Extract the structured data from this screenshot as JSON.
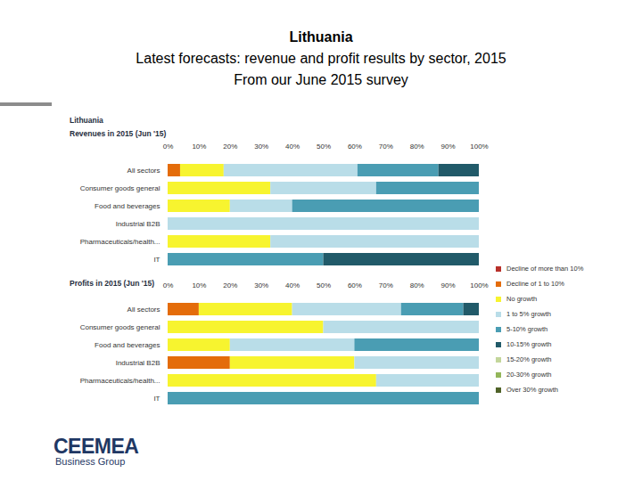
{
  "header": {
    "title": "Lithuania",
    "subtitle": "Latest forecasts: revenue and profit results by sector, 2015",
    "caption": "From our June 2015 survey"
  },
  "panel": {
    "title": "Lithuania"
  },
  "logo": {
    "name": "CEEMEA",
    "tagline": "Business Group"
  },
  "chart_data": [
    {
      "type": "bar",
      "title": "Revenues in 2015 (Jun '15)",
      "orientation": "horizontal",
      "stacked": true,
      "grid": false,
      "legend": "right",
      "data_labels": false,
      "categories": [
        "All sectors",
        "Consumer goods general",
        "Food and beverages",
        "Industrial B2B",
        "Pharmaceuticals/health...",
        "IT"
      ],
      "xlim": [
        0,
        100
      ],
      "xticks": [
        {
          "value": 0,
          "label": "0%"
        },
        {
          "value": 10,
          "label": "10%"
        },
        {
          "value": 20,
          "label": "20%"
        },
        {
          "value": 30,
          "label": "30%"
        },
        {
          "value": 40,
          "label": "40%"
        },
        {
          "value": 50,
          "label": "50%"
        },
        {
          "value": 60,
          "label": "60%"
        },
        {
          "value": 70,
          "label": "70%"
        },
        {
          "value": 80,
          "label": "80%"
        },
        {
          "value": 90,
          "label": "90%"
        },
        {
          "value": 100,
          "label": "100%"
        }
      ],
      "series": [
        {
          "name": "Decline of more than 10%",
          "color": "#b8302a",
          "values": [
            0,
            0,
            0,
            0,
            0,
            0
          ]
        },
        {
          "name": "Decline of 1 to 10%",
          "color": "#e46c0a",
          "values": [
            4,
            0,
            0,
            0,
            0,
            0
          ]
        },
        {
          "name": "No growth",
          "color": "#f7f42f",
          "values": [
            14,
            33,
            20,
            0,
            33,
            0
          ]
        },
        {
          "name": "1 to 5% growth",
          "color": "#b9dde8",
          "values": [
            43,
            34,
            20,
            100,
            67,
            0
          ]
        },
        {
          "name": "5-10% growth",
          "color": "#4a9db3",
          "values": [
            26,
            33,
            60,
            0,
            0,
            50
          ]
        },
        {
          "name": "10-15% growth",
          "color": "#215a69",
          "values": [
            13,
            0,
            0,
            0,
            0,
            50
          ]
        },
        {
          "name": "15-20% growth",
          "color": "#c3d69b",
          "values": [
            0,
            0,
            0,
            0,
            0,
            0
          ]
        },
        {
          "name": "20-30% growth",
          "color": "#93b65a",
          "values": [
            0,
            0,
            0,
            0,
            0,
            0
          ]
        },
        {
          "name": "Over 30% growth",
          "color": "#4f6228",
          "values": [
            0,
            0,
            0,
            0,
            0,
            0
          ]
        }
      ]
    },
    {
      "type": "bar",
      "title": "Profits in 2015 (Jun '15)",
      "orientation": "horizontal",
      "stacked": true,
      "grid": false,
      "legend": "right",
      "data_labels": false,
      "categories": [
        "All sectors",
        "Consumer goods general",
        "Food and beverages",
        "Industrial B2B",
        "Pharmaceuticals/health...",
        "IT"
      ],
      "xlim": [
        0,
        100
      ],
      "xticks": [
        {
          "value": 0,
          "label": "0%"
        },
        {
          "value": 10,
          "label": "10%"
        },
        {
          "value": 20,
          "label": "20%"
        },
        {
          "value": 30,
          "label": "30%"
        },
        {
          "value": 40,
          "label": "40%"
        },
        {
          "value": 50,
          "label": "50%"
        },
        {
          "value": 60,
          "label": "60%"
        },
        {
          "value": 70,
          "label": "70%"
        },
        {
          "value": 80,
          "label": "80%"
        },
        {
          "value": 90,
          "label": "90%"
        },
        {
          "value": 100,
          "label": "100%"
        }
      ],
      "series": [
        {
          "name": "Decline of more than 10%",
          "color": "#b8302a",
          "values": [
            0,
            0,
            0,
            0,
            0,
            0
          ]
        },
        {
          "name": "Decline of 1 to 10%",
          "color": "#e46c0a",
          "values": [
            10,
            0,
            0,
            20,
            0,
            0
          ]
        },
        {
          "name": "No growth",
          "color": "#f7f42f",
          "values": [
            30,
            50,
            20,
            40,
            67,
            0
          ]
        },
        {
          "name": "1 to 5% growth",
          "color": "#b9dde8",
          "values": [
            35,
            50,
            40,
            40,
            33,
            0
          ]
        },
        {
          "name": "5-10% growth",
          "color": "#4a9db3",
          "values": [
            20,
            0,
            40,
            0,
            0,
            100
          ]
        },
        {
          "name": "10-15% growth",
          "color": "#215a69",
          "values": [
            5,
            0,
            0,
            0,
            0,
            0
          ]
        },
        {
          "name": "15-20% growth",
          "color": "#c3d69b",
          "values": [
            0,
            0,
            0,
            0,
            0,
            0
          ]
        },
        {
          "name": "20-30% growth",
          "color": "#93b65a",
          "values": [
            0,
            0,
            0,
            0,
            0,
            0
          ]
        },
        {
          "name": "Over 30% growth",
          "color": "#4f6228",
          "values": [
            0,
            0,
            0,
            0,
            0,
            0
          ]
        }
      ]
    }
  ]
}
